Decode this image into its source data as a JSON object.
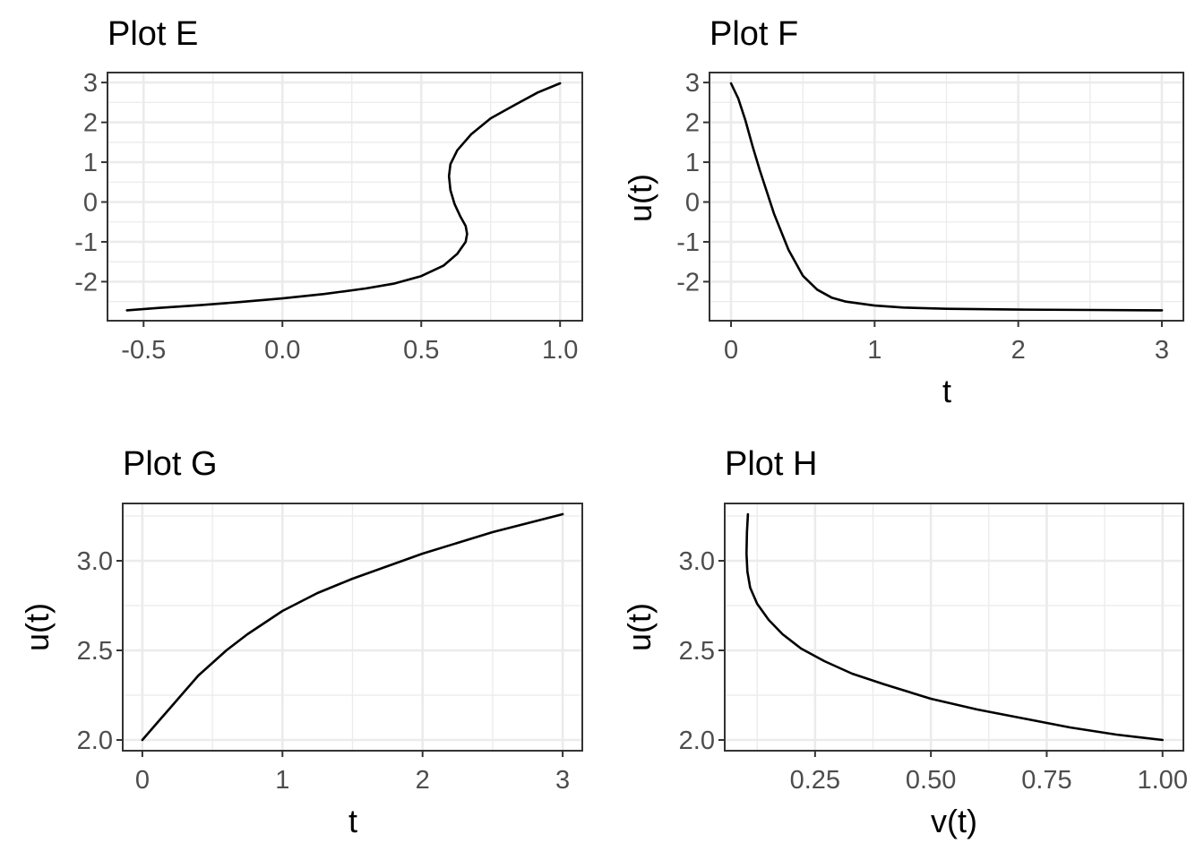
{
  "chart_data": [
    {
      "type": "line",
      "title": "Plot E",
      "xlabel": "",
      "ylabel": "",
      "xlim": [
        -0.63,
        1.08
      ],
      "ylim": [
        -2.98,
        3.25
      ],
      "xticks": [
        -0.5,
        0.0,
        0.5,
        1.0
      ],
      "xtick_labels": [
        "-0.5",
        "0.0",
        "0.5",
        "1.0"
      ],
      "yticks": [
        -2,
        -1,
        0,
        1,
        2,
        3
      ],
      "ytick_labels": [
        "-2",
        "-1",
        "0",
        "1",
        "2",
        "3"
      ],
      "grid": true,
      "x": [
        -0.56,
        -0.45,
        -0.3,
        -0.15,
        0.0,
        0.15,
        0.3,
        0.4,
        0.5,
        0.58,
        0.63,
        0.66,
        0.665,
        0.66,
        0.64,
        0.62,
        0.605,
        0.6,
        0.605,
        0.63,
        0.68,
        0.75,
        0.84,
        0.92,
        1.0
      ],
      "y": [
        -2.72,
        -2.66,
        -2.59,
        -2.51,
        -2.42,
        -2.31,
        -2.17,
        -2.05,
        -1.86,
        -1.6,
        -1.3,
        -1.0,
        -0.8,
        -0.6,
        -0.35,
        -0.05,
        0.3,
        0.65,
        0.95,
        1.3,
        1.7,
        2.1,
        2.45,
        2.75,
        2.98
      ]
    },
    {
      "type": "line",
      "title": "Plot F",
      "xlabel": "t",
      "ylabel": "u(t)",
      "xlim": [
        -0.15,
        3.15
      ],
      "ylim": [
        -2.98,
        3.25
      ],
      "xticks": [
        0,
        1,
        2,
        3
      ],
      "xtick_labels": [
        "0",
        "1",
        "2",
        "3"
      ],
      "yticks": [
        -2,
        -1,
        0,
        1,
        2,
        3
      ],
      "ytick_labels": [
        "-2",
        "-1",
        "0",
        "1",
        "2",
        "3"
      ],
      "grid": true,
      "x": [
        0.0,
        0.05,
        0.1,
        0.15,
        0.2,
        0.3,
        0.4,
        0.5,
        0.6,
        0.7,
        0.8,
        1.0,
        1.2,
        1.5,
        2.0,
        2.5,
        3.0
      ],
      "y": [
        2.98,
        2.6,
        2.05,
        1.4,
        0.8,
        -0.3,
        -1.2,
        -1.85,
        -2.2,
        -2.4,
        -2.5,
        -2.6,
        -2.65,
        -2.68,
        -2.7,
        -2.71,
        -2.72
      ]
    },
    {
      "type": "line",
      "title": "Plot G",
      "xlabel": "t",
      "ylabel": "u(t)",
      "xlim": [
        -0.14,
        3.14
      ],
      "ylim": [
        1.94,
        3.32
      ],
      "xticks": [
        0,
        1,
        2,
        3
      ],
      "xtick_labels": [
        "0",
        "1",
        "2",
        "3"
      ],
      "yticks": [
        2.0,
        2.5,
        3.0
      ],
      "ytick_labels": [
        "2.0",
        "2.5",
        "3.0"
      ],
      "grid": true,
      "x": [
        0.0,
        0.1,
        0.2,
        0.3,
        0.4,
        0.5,
        0.6,
        0.75,
        1.0,
        1.25,
        1.5,
        1.75,
        2.0,
        2.25,
        2.5,
        2.75,
        3.0
      ],
      "y": [
        2.0,
        2.09,
        2.18,
        2.27,
        2.36,
        2.43,
        2.5,
        2.59,
        2.72,
        2.82,
        2.9,
        2.97,
        3.04,
        3.1,
        3.16,
        3.21,
        3.26
      ]
    },
    {
      "type": "line",
      "title": "Plot H",
      "xlabel": "v(t)",
      "ylabel": "u(t)",
      "xlim": [
        0.055,
        1.045
      ],
      "ylim": [
        1.94,
        3.32
      ],
      "xticks": [
        0.25,
        0.5,
        0.75,
        1.0
      ],
      "xtick_labels": [
        "0.25",
        "0.50",
        "0.75",
        "1.00"
      ],
      "yticks": [
        2.0,
        2.5,
        3.0
      ],
      "ytick_labels": [
        "2.0",
        "2.5",
        "3.0"
      ],
      "grid": true,
      "x": [
        0.105,
        0.103,
        0.102,
        0.104,
        0.11,
        0.125,
        0.15,
        0.18,
        0.22,
        0.27,
        0.33,
        0.4,
        0.5,
        0.6,
        0.7,
        0.8,
        0.9,
        1.0
      ],
      "y": [
        3.26,
        3.16,
        3.04,
        2.94,
        2.85,
        2.76,
        2.67,
        2.59,
        2.51,
        2.44,
        2.37,
        2.31,
        2.23,
        2.17,
        2.12,
        2.07,
        2.03,
        2.0
      ]
    }
  ]
}
